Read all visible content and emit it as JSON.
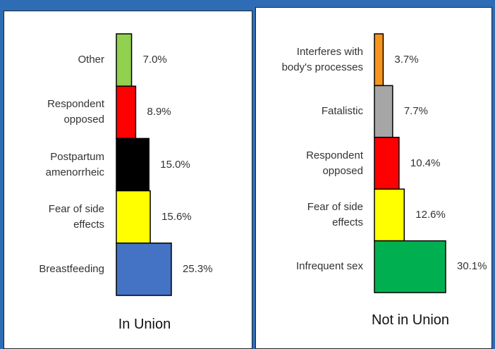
{
  "chart_data": [
    {
      "type": "bar",
      "orientation": "horizontal",
      "title": "In Union",
      "categories": [
        "Other",
        "Respondent\nopposed",
        "Postpartum\namenorrheic",
        "Fear of side\neffects",
        "Breastfeeding"
      ],
      "values": [
        7.0,
        8.9,
        15.0,
        15.6,
        25.3
      ],
      "value_labels": [
        "7.0%",
        "8.9%",
        "15.0%",
        "15.6%",
        "25.3%"
      ],
      "colors": [
        "#92d050",
        "#ff0000",
        "#000000",
        "#ffff00",
        "#4472c4"
      ]
    },
    {
      "type": "bar",
      "orientation": "horizontal",
      "title": "Not in Union",
      "categories": [
        "Interferes with\nbody's processes",
        "Fatalistic",
        "Respondent\nopposed",
        "Fear of side\neffects",
        "Infrequent sex"
      ],
      "values": [
        3.7,
        7.7,
        10.4,
        12.6,
        30.1
      ],
      "value_labels": [
        "3.7%",
        "7.7%",
        "10.4%",
        "12.6%",
        "30.1%"
      ],
      "colors": [
        "#f7941d",
        "#a6a6a6",
        "#ff0000",
        "#ffff00",
        "#00b050"
      ]
    }
  ]
}
